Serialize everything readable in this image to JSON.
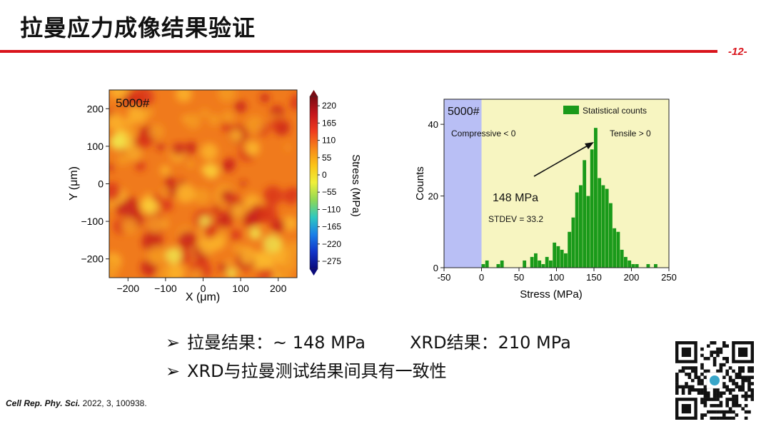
{
  "slide": {
    "title": "拉曼应力成像结果验证",
    "page_number": "-12-",
    "accent_color": "#d9141c"
  },
  "bullets": [
    {
      "icon": "arrow-bullet-icon",
      "parts": [
        "拉曼结果：~ 148 MPa",
        "XRD结果：210 MPa"
      ]
    },
    {
      "icon": "arrow-bullet-icon",
      "parts": [
        "XRD与拉曼测试结果间具有一致性"
      ]
    }
  ],
  "citation": {
    "journal": "Cell Rep. Phy. Sci.",
    "rest": " 2022, 3, 100938."
  },
  "chart_data": [
    {
      "type": "heatmap",
      "label": "5000#",
      "xlabel": "X (μm)",
      "ylabel": "Y (μm)",
      "xlim": [
        -250,
        250
      ],
      "ylim": [
        -250,
        250
      ],
      "x_ticks": [
        -200,
        -100,
        0,
        100,
        200
      ],
      "y_ticks": [
        -200,
        -100,
        0,
        100,
        200
      ],
      "colorbar": {
        "label": "Stress (MPa)",
        "range": [
          -300,
          250
        ],
        "ticks": [
          220,
          165,
          110,
          55,
          0,
          -55,
          -110,
          -165,
          -220,
          -275
        ],
        "colors": [
          "#7a0a12",
          "#c4161c",
          "#ef3b1f",
          "#f7861a",
          "#fbc418",
          "#eff03a",
          "#8fd855",
          "#2fc8c0",
          "#1a7fe8",
          "#1234c8",
          "#0a0a7a"
        ]
      }
    },
    {
      "type": "bar",
      "label": "5000#",
      "xlabel": "Stress (MPa)",
      "ylabel": "Counts",
      "xlim": [
        -50,
        250
      ],
      "ylim": [
        0,
        47
      ],
      "x_ticks": [
        -50,
        0,
        50,
        100,
        150,
        200,
        250
      ],
      "y_ticks": [
        0,
        20,
        40
      ],
      "legend": "Statistical counts",
      "legend_position": "top-right",
      "regions": [
        {
          "label": "Compressive < 0",
          "range": [
            -50,
            0
          ],
          "color": "#b9bff5"
        },
        {
          "label": "Tensile > 0",
          "range": [
            0,
            250
          ],
          "color": "#f7f5c1"
        }
      ],
      "annotation": {
        "value": "148 MPa",
        "stdev": "STDEV = 33.2"
      },
      "bin_width": 5,
      "bins": [
        {
          "x": 2.5,
          "count": 1
        },
        {
          "x": 7.5,
          "count": 2
        },
        {
          "x": 22.5,
          "count": 1
        },
        {
          "x": 27.5,
          "count": 2
        },
        {
          "x": 57.5,
          "count": 2
        },
        {
          "x": 67.5,
          "count": 3
        },
        {
          "x": 72.5,
          "count": 4
        },
        {
          "x": 77.5,
          "count": 2
        },
        {
          "x": 82.5,
          "count": 1
        },
        {
          "x": 87.5,
          "count": 3
        },
        {
          "x": 92.5,
          "count": 2
        },
        {
          "x": 97.5,
          "count": 7
        },
        {
          "x": 102.5,
          "count": 6
        },
        {
          "x": 107.5,
          "count": 5
        },
        {
          "x": 112.5,
          "count": 4
        },
        {
          "x": 117.5,
          "count": 10
        },
        {
          "x": 122.5,
          "count": 14
        },
        {
          "x": 127.5,
          "count": 21
        },
        {
          "x": 132.5,
          "count": 23
        },
        {
          "x": 137.5,
          "count": 30
        },
        {
          "x": 142.5,
          "count": 20
        },
        {
          "x": 147.5,
          "count": 33
        },
        {
          "x": 152.5,
          "count": 39
        },
        {
          "x": 157.5,
          "count": 25
        },
        {
          "x": 162.5,
          "count": 23
        },
        {
          "x": 167.5,
          "count": 22
        },
        {
          "x": 172.5,
          "count": 18
        },
        {
          "x": 177.5,
          "count": 11
        },
        {
          "x": 182.5,
          "count": 10
        },
        {
          "x": 187.5,
          "count": 5
        },
        {
          "x": 192.5,
          "count": 3
        },
        {
          "x": 197.5,
          "count": 2
        },
        {
          "x": 202.5,
          "count": 1
        },
        {
          "x": 207.5,
          "count": 1
        },
        {
          "x": 222.5,
          "count": 1
        },
        {
          "x": 232.5,
          "count": 1
        }
      ]
    }
  ]
}
